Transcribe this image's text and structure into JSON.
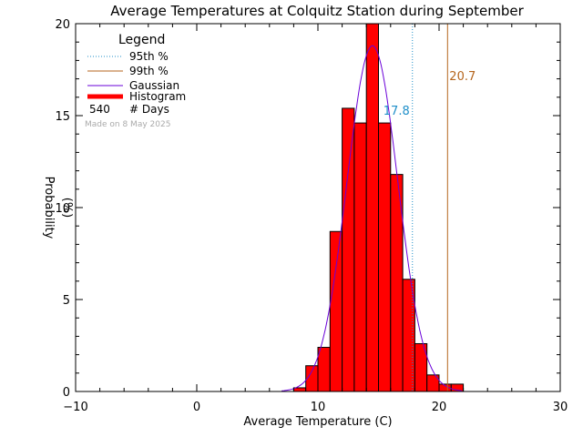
{
  "chart_data": {
    "type": "bar",
    "title": "Average Temperatures at Colquitz Station during September",
    "xlabel": "Average Temperature (C)",
    "ylabel": "Probability",
    "ylabel_unit": "(%)",
    "xlim": [
      -10,
      30
    ],
    "ylim": [
      0,
      20
    ],
    "xticks": [
      -10,
      0,
      10,
      20,
      30
    ],
    "yticks": [
      0,
      5,
      10,
      15,
      20
    ],
    "grid": false,
    "legend_position": "top-left",
    "legend": {
      "title": "Legend",
      "items": [
        {
          "label": "95th %",
          "style": "dotted",
          "color": "#1f8fc9"
        },
        {
          "label": "99th %",
          "style": "solid",
          "color": "#b5651d"
        },
        {
          "label": "Gaussian",
          "style": "solid",
          "color": "#6a00d8"
        },
        {
          "label": "Histogram",
          "style": "thick",
          "color": "#ff0000"
        }
      ],
      "days_count": "540",
      "days_label": "# Days"
    },
    "made_on": "Made on 8 May 2025",
    "bin_width": 1,
    "bins": [
      {
        "start": 8,
        "value": 0.2
      },
      {
        "start": 9,
        "value": 1.4
      },
      {
        "start": 10,
        "value": 2.4
      },
      {
        "start": 11,
        "value": 8.7
      },
      {
        "start": 12,
        "value": 15.4
      },
      {
        "start": 13,
        "value": 14.6
      },
      {
        "start": 14,
        "value": 20.0
      },
      {
        "start": 15,
        "value": 14.6
      },
      {
        "start": 16,
        "value": 11.8
      },
      {
        "start": 17,
        "value": 6.1
      },
      {
        "start": 18,
        "value": 2.6
      },
      {
        "start": 19,
        "value": 0.9
      },
      {
        "start": 20,
        "value": 0.4
      },
      {
        "start": 21,
        "value": 0.4
      }
    ],
    "gaussian": {
      "mean": 14.5,
      "sigma": 2.1,
      "peak": 18.8
    },
    "percentile_lines": [
      {
        "name": "95th %",
        "x": 17.8,
        "label": "17.8",
        "color": "#1f8fc9",
        "style": "dotted"
      },
      {
        "name": "99th %",
        "x": 20.7,
        "label": "20.7",
        "color": "#b5651d",
        "style": "solid"
      }
    ],
    "colors": {
      "histogram": "#ff0000",
      "gaussian": "#6a00d8"
    }
  }
}
